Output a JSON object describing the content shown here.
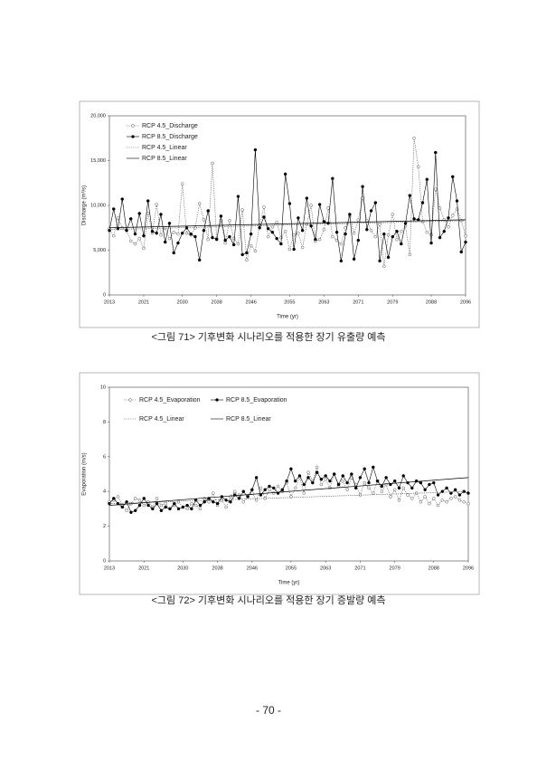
{
  "chart_data": [
    {
      "type": "line",
      "caption": "<그림 71> 기후변화 시나리오를 적용한 장기 유출량 예측",
      "xlabel": "Time (yr)",
      "ylabel": "Discharge (m³/s)",
      "xlim": [
        2013,
        2096
      ],
      "xticks": [
        2013,
        2021,
        2030,
        2038,
        2046,
        2055,
        2063,
        2071,
        2079,
        2088,
        2096
      ],
      "ylim": [
        0,
        20000
      ],
      "yticks": [
        0,
        {
          "value": 5000,
          "label": "5,000"
        },
        {
          "value": 10000,
          "label": "10,000"
        },
        {
          "value": 15000,
          "label": "15,000"
        },
        {
          "value": 20000,
          "label": "20,000"
        }
      ],
      "legend": "upper left",
      "x": [
        2013,
        2014,
        2015,
        2016,
        2017,
        2018,
        2019,
        2020,
        2021,
        2022,
        2023,
        2024,
        2025,
        2026,
        2027,
        2028,
        2029,
        2030,
        2031,
        2032,
        2033,
        2034,
        2035,
        2036,
        2037,
        2038,
        2039,
        2040,
        2041,
        2042,
        2043,
        2044,
        2045,
        2046,
        2047,
        2048,
        2049,
        2050,
        2051,
        2052,
        2053,
        2054,
        2055,
        2056,
        2057,
        2058,
        2059,
        2060,
        2061,
        2062,
        2063,
        2064,
        2065,
        2066,
        2067,
        2068,
        2069,
        2070,
        2071,
        2072,
        2073,
        2074,
        2075,
        2076,
        2077,
        2078,
        2079,
        2080,
        2081,
        2082,
        2083,
        2084,
        2085,
        2086,
        2087,
        2088,
        2089,
        2090,
        2091,
        2092,
        2093,
        2094,
        2095,
        2096
      ],
      "series": [
        {
          "name": "RCP 4.5_Discharge",
          "color": "#555555",
          "line_style": "dotted",
          "marker": "open",
          "values": [
            7400,
            6600,
            8600,
            7500,
            7200,
            6000,
            5700,
            6300,
            5200,
            9100,
            6900,
            10100,
            6700,
            7500,
            6300,
            7000,
            6800,
            12400,
            6900,
            6700,
            7500,
            10200,
            8400,
            6200,
            14700,
            6300,
            8300,
            5800,
            8300,
            6300,
            5700,
            9500,
            3900,
            5500,
            4900,
            7800,
            9800,
            6500,
            7600,
            8100,
            6400,
            7100,
            5100,
            6700,
            6900,
            5300,
            7900,
            10000,
            6000,
            6200,
            7300,
            9700,
            6500,
            6100,
            5700,
            7500,
            8800,
            6900,
            8400,
            10800,
            8300,
            7200,
            6500,
            7900,
            3200,
            6700,
            9000,
            6200,
            7100,
            7700,
            4500,
            17500,
            14300,
            8200,
            7000,
            6700,
            11800,
            9700,
            8400,
            7600,
            8900,
            9600,
            8300,
            6600
          ]
        },
        {
          "name": "RCP 8.5_Discharge",
          "color": "#000000",
          "line_style": "solid",
          "marker": "filled",
          "values": [
            7200,
            9600,
            7400,
            10700,
            7200,
            8500,
            6800,
            9100,
            6600,
            10500,
            7100,
            6900,
            9000,
            5900,
            8000,
            4700,
            5800,
            6900,
            7500,
            6800,
            6500,
            3900,
            7200,
            9400,
            6400,
            6200,
            8800,
            6100,
            6500,
            5600,
            11000,
            4500,
            4700,
            6800,
            16200,
            7500,
            8700,
            7400,
            7000,
            6300,
            5700,
            13500,
            10200,
            5100,
            8600,
            7200,
            10800,
            7700,
            6200,
            10100,
            8200,
            8000,
            13000,
            7000,
            3800,
            6800,
            9000,
            4000,
            6100,
            12100,
            7300,
            9400,
            10300,
            3800,
            6800,
            4200,
            6500,
            7100,
            5700,
            8000,
            11100,
            8500,
            8400,
            10300,
            12900,
            5800,
            15900,
            6400,
            7100,
            8600,
            13200,
            10500,
            4800,
            5900
          ]
        },
        {
          "name": "RCP 4.5_Linear",
          "color": "#555555",
          "line_style": "dotted",
          "x": [
            2013,
            2096
          ],
          "values": [
            7300,
            8300
          ]
        },
        {
          "name": "RCP 8.5_Linear",
          "color": "#000000",
          "line_style": "solid",
          "x": [
            2013,
            2096
          ],
          "values": [
            7500,
            8400
          ]
        }
      ]
    },
    {
      "type": "line",
      "caption": "<그림 72> 기후변화 시나리오를 적용한 장기 증발량 예측",
      "xlabel": "Time (yr)",
      "ylabel": "Evaporation (m/s)",
      "xlim": [
        2013,
        2096
      ],
      "xticks": [
        2013,
        2021,
        2030,
        2038,
        2046,
        2055,
        2063,
        2071,
        2079,
        2088,
        2096
      ],
      "ylim": [
        0,
        10
      ],
      "yticks": [
        0,
        2,
        4,
        6,
        8,
        10
      ],
      "legend": "upper left",
      "x": [
        2013,
        2014,
        2015,
        2016,
        2017,
        2018,
        2019,
        2020,
        2021,
        2022,
        2023,
        2024,
        2025,
        2026,
        2027,
        2028,
        2029,
        2030,
        2031,
        2032,
        2033,
        2034,
        2035,
        2036,
        2037,
        2038,
        2039,
        2040,
        2041,
        2042,
        2043,
        2044,
        2045,
        2046,
        2047,
        2048,
        2049,
        2050,
        2051,
        2052,
        2053,
        2054,
        2055,
        2056,
        2057,
        2058,
        2059,
        2060,
        2061,
        2062,
        2063,
        2064,
        2065,
        2066,
        2067,
        2068,
        2069,
        2070,
        2071,
        2072,
        2073,
        2074,
        2075,
        2076,
        2077,
        2078,
        2079,
        2080,
        2081,
        2082,
        2083,
        2084,
        2085,
        2086,
        2087,
        2088,
        2089,
        2090,
        2091,
        2092,
        2093,
        2094,
        2095,
        2096
      ],
      "series": [
        {
          "name": "RCP 4.5_Evaporation",
          "color": "#555555",
          "line_style": "dotted",
          "marker": "open",
          "values": [
            3.4,
            3.5,
            3.7,
            3.2,
            2.9,
            3.3,
            3.6,
            3.5,
            3.2,
            3.4,
            3.1,
            3.6,
            3.2,
            3.3,
            3.0,
            3.2,
            3.4,
            3.1,
            3.0,
            3.3,
            3.2,
            3.0,
            3.6,
            3.4,
            3.9,
            3.2,
            3.5,
            3.1,
            3.7,
            4.0,
            3.8,
            3.4,
            3.7,
            3.9,
            3.5,
            4.2,
            3.6,
            4.1,
            3.9,
            4.3,
            4.0,
            4.5,
            3.7,
            4.2,
            4.8,
            3.9,
            5.1,
            4.6,
            5.4,
            4.4,
            4.7,
            4.2,
            5.0,
            4.3,
            4.6,
            4.1,
            4.8,
            4.4,
            3.8,
            4.5,
            4.2,
            3.9,
            4.6,
            4.0,
            4.4,
            3.7,
            4.1,
            3.5,
            4.2,
            3.8,
            3.6,
            3.9,
            3.4,
            3.7,
            3.3,
            3.6,
            3.2,
            3.5,
            3.4,
            3.6,
            3.7,
            3.5,
            3.4,
            3.3
          ]
        },
        {
          "name": "RCP 8.5_Evaporation",
          "color": "#000000",
          "line_style": "solid",
          "marker": "filled",
          "values": [
            3.3,
            3.6,
            3.3,
            3.1,
            3.4,
            2.8,
            2.9,
            3.2,
            3.6,
            3.2,
            3.0,
            3.3,
            2.9,
            3.1,
            3.0,
            3.3,
            3.0,
            3.1,
            3.2,
            3.0,
            3.5,
            3.2,
            3.4,
            3.6,
            3.4,
            3.3,
            3.7,
            3.5,
            3.4,
            3.8,
            3.6,
            4.0,
            3.7,
            4.1,
            4.8,
            3.8,
            4.1,
            4.3,
            4.2,
            3.9,
            4.1,
            4.6,
            5.3,
            4.6,
            4.9,
            4.4,
            4.8,
            4.5,
            5.1,
            4.7,
            4.9,
            4.6,
            5.0,
            4.4,
            4.9,
            4.5,
            5.0,
            4.2,
            4.8,
            5.3,
            4.5,
            5.4,
            4.6,
            4.3,
            4.8,
            4.4,
            4.6,
            4.2,
            4.9,
            4.5,
            4.2,
            4.6,
            4.5,
            4.1,
            4.4,
            4.5,
            3.8,
            4.0,
            4.2,
            3.9,
            4.1,
            3.8,
            4.0,
            3.9
          ]
        },
        {
          "name": "RCP 4.5_Linear",
          "color": "#555555",
          "line_style": "dotted",
          "x": [
            2013,
            2096
          ],
          "values": [
            3.3,
            4.0
          ]
        },
        {
          "name": "RCP 8.5_Linear",
          "color": "#000000",
          "line_style": "solid",
          "x": [
            2013,
            2096
          ],
          "values": [
            3.2,
            4.8
          ]
        }
      ]
    }
  ],
  "page_number": "- 70 -"
}
